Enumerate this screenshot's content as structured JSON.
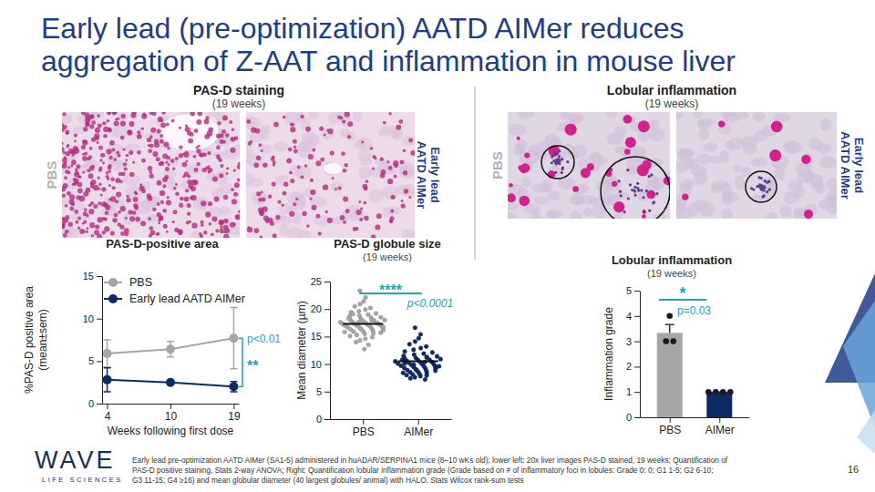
{
  "title": [
    "Early lead (pre-optimization) AATD AIMer reduces",
    "aggregation of Z-AAT and inflammation in mouse liver"
  ],
  "images": [
    {
      "title": "PAS-D staining",
      "subtitle": "(19 weeks)",
      "left_label": "PBS",
      "right_label": [
        "Early lead",
        "AATD AIMer"
      ]
    },
    {
      "title": "Lobular inflammation",
      "subtitle": "(19 weeks)",
      "left_label": "PBS",
      "right_label": [
        "Early lead",
        "AATD AIMer"
      ]
    }
  ],
  "chart_data": [
    {
      "type": "line",
      "title": "PAS-D-positive area",
      "x_label": "Weeks following first dose",
      "y_label": [
        "%PAS-D positive area",
        "(mean±sem)"
      ],
      "categories": [
        "4",
        "10",
        "19"
      ],
      "ylim": [
        0,
        15
      ],
      "yticks": [
        0,
        5,
        10,
        15
      ],
      "legend": "upper left",
      "marker": "circle",
      "series": [
        {
          "name": "PBS",
          "color": "#a6a6a6",
          "values": [
            5.9,
            6.4,
            7.7
          ],
          "errors": [
            1.6,
            0.9,
            3.6
          ]
        },
        {
          "name": "Early lead AATD AIMer",
          "color": "#0b2a66",
          "values": [
            2.8,
            2.5,
            2.0
          ],
          "errors": [
            1.4,
            0.1,
            0.6
          ]
        }
      ],
      "p_value": "p<0.01",
      "significance": "**"
    },
    {
      "type": "strip",
      "title": "PAS-D globule size",
      "subtitle": "(19 weeks)",
      "y_label": "Mean diameter (µm)",
      "categories": [
        "PBS",
        "AIMer"
      ],
      "ylim": [
        0,
        25
      ],
      "yticks": [
        0,
        5,
        10,
        15,
        20,
        25
      ],
      "colors": [
        "#a6a6a6",
        "#0b2a66"
      ],
      "values": [
        [
          23.3,
          22.1,
          21.4,
          20.9,
          20.5,
          20.2,
          19.9,
          19.6,
          19.4,
          19.2,
          19.0,
          18.8,
          18.7,
          18.5,
          18.4,
          18.2,
          18.1,
          18.0,
          17.9,
          17.8,
          17.7,
          17.6,
          17.5,
          17.5,
          17.4,
          17.3,
          17.3,
          17.2,
          17.1,
          17.0,
          17.0,
          16.9,
          16.8,
          16.7,
          16.6,
          16.5,
          16.4,
          16.3,
          16.2,
          16.1,
          16.0,
          15.9,
          15.8,
          15.6,
          15.5,
          15.3,
          15.1,
          14.9,
          14.6,
          14.3,
          14.0,
          13.5,
          12.7,
          17.6,
          18.3,
          16.8,
          17.9,
          16.4,
          19.1,
          15.7
        ],
        [
          16.6,
          15.4,
          14.7,
          14.1,
          13.6,
          13.2,
          12.9,
          12.6,
          12.3,
          12.1,
          11.9,
          11.7,
          11.5,
          11.4,
          11.2,
          11.1,
          11.0,
          10.9,
          10.8,
          10.7,
          10.6,
          10.5,
          10.4,
          10.3,
          10.2,
          10.1,
          10.0,
          9.9,
          9.8,
          9.7,
          9.6,
          9.5,
          9.4,
          9.3,
          9.2,
          9.1,
          9.0,
          8.9,
          8.8,
          8.7,
          8.6,
          8.5,
          8.4,
          8.3,
          8.2,
          8.1,
          8.0,
          7.9,
          7.8,
          7.6,
          7.4,
          7.2,
          10.4,
          9.9,
          10.8,
          9.5,
          11.3,
          8.9,
          10.1,
          9.6
        ]
      ],
      "means": [
        17.3,
        10.5
      ],
      "p_value": "p<0.0001",
      "significance": "****"
    },
    {
      "type": "bar",
      "title": "Lobular inflammation",
      "subtitle": "(19 weeks)",
      "y_label": "Inflammation grade",
      "categories": [
        "PBS",
        "AIMer"
      ],
      "values": [
        3.33,
        1
      ],
      "errors": [
        0.33,
        0
      ],
      "points": [
        [
          4,
          3,
          3
        ],
        [
          1,
          1,
          1,
          1
        ]
      ],
      "colors": [
        "#a6a6a6",
        "#0b2a66"
      ],
      "ylim": [
        0,
        5
      ],
      "yticks": [
        0,
        1,
        2,
        3,
        4,
        5
      ],
      "p_value": "p=0.03",
      "significance": "*"
    }
  ],
  "footnote": [
    "Early lead pre-optimization AATD AIMer (SA1-5) administered in huADAR/SERPINA1 mice (8–10 wKs old); lower left: 20x liver images PAS-D stained, 19 weeks; Quantification of",
    "PAS-D positive staining, Stats 2-way ANOVA; Right: Quantification lobular inflammation grade (Grade based on # of inflammatory foci in lobules: Grade 0: 0; G1 1-5; G2 6-10;",
    "G3 11-15; G4 ≥16) and mean globular diameter (40 largest globules/ animal) with HALO. Stats Wilcox rank-sum tests"
  ],
  "logo": {
    "name": "WAVE",
    "tagline": "LIFE SCIENCES"
  },
  "page_number": 16
}
